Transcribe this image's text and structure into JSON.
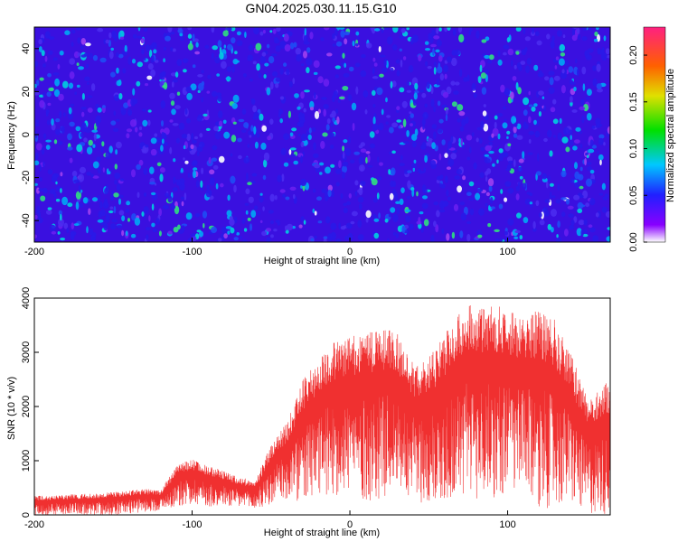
{
  "title": "GN04.2025.030.11.15.G10",
  "colors": {
    "snr_line": "#f03030",
    "axis": "#000000",
    "background": "#ffffff"
  },
  "chart_data": [
    {
      "type": "heatmap",
      "xlabel": "Height of straight line (km)",
      "ylabel": "Frequency (Hz)",
      "xlim": [
        -200,
        165
      ],
      "ylim": [
        -50,
        50
      ],
      "x_ticks": [
        -200,
        -100,
        0,
        100
      ],
      "y_ticks": [
        -40,
        -20,
        0,
        20,
        40
      ],
      "colorbar": {
        "label": "Normalized spectral amplitude",
        "range": [
          0,
          0.23
        ],
        "ticks": [
          "0.00",
          "0.05",
          "0.10",
          "0.15",
          "0.20"
        ],
        "colormap": "rainbow"
      }
    },
    {
      "type": "line",
      "xlabel": "Height of straight line (km)",
      "ylabel": "SNR (10 * v/v)",
      "xlim": [
        -200,
        165
      ],
      "ylim": [
        0,
        4000
      ],
      "x_ticks": [
        -200,
        -100,
        0,
        100
      ],
      "y_ticks": [
        0,
        1000,
        2000,
        3000,
        4000
      ],
      "series": [
        {
          "x": [
            -200,
            -175,
            -150,
            -130,
            -120,
            -110,
            -100,
            -90,
            -80,
            -70,
            -60,
            -50,
            -40,
            -30,
            -20,
            -10,
            0,
            10,
            20,
            25,
            30,
            40,
            50,
            60,
            70,
            75,
            80,
            90,
            100,
            110,
            120,
            130,
            140,
            150,
            165
          ],
          "y_upper": [
            350,
            380,
            420,
            480,
            460,
            900,
            1050,
            900,
            820,
            700,
            620,
            1300,
            1700,
            2500,
            2900,
            3200,
            3300,
            3400,
            3450,
            3500,
            3350,
            2800,
            2900,
            3350,
            3750,
            3950,
            3800,
            3900,
            3800,
            3650,
            3800,
            3600,
            3000,
            2200,
            2500
          ],
          "y_lower": [
            0,
            0,
            0,
            50,
            80,
            150,
            200,
            150,
            150,
            120,
            100,
            150,
            250,
            200,
            300,
            350,
            400,
            200,
            300,
            400,
            500,
            300,
            100,
            200,
            300,
            400,
            200,
            300,
            400,
            300,
            150,
            100,
            200,
            0,
            0
          ]
        }
      ]
    }
  ]
}
